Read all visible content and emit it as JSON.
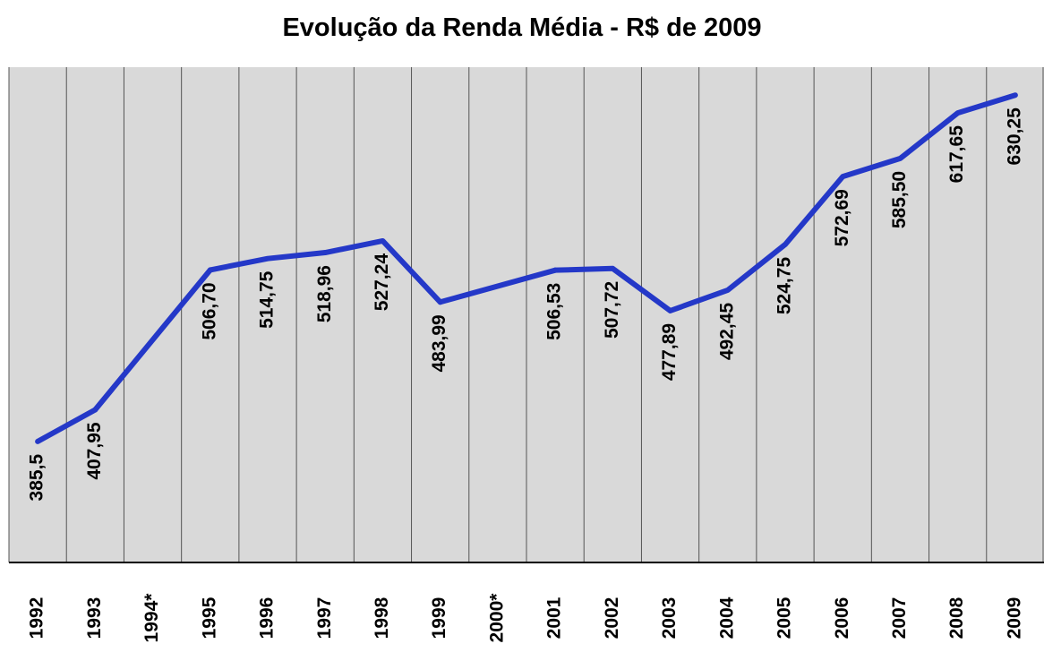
{
  "chart_data": {
    "type": "line",
    "title": "Evolução da Renda Média - R$ de 2009",
    "categories": [
      "1992",
      "1993",
      "1994*",
      "1995",
      "1996",
      "1997",
      "1998",
      "1999",
      "2000*",
      "2001",
      "2002",
      "2003",
      "2004",
      "2005",
      "2006",
      "2007",
      "2008",
      "2009"
    ],
    "series": [
      {
        "name": "Renda Média",
        "color": "#2438c8",
        "values": [
          385.5,
          407.95,
          null,
          506.7,
          514.75,
          518.96,
          527.24,
          483.99,
          null,
          506.53,
          507.72,
          477.89,
          492.45,
          524.75,
          572.69,
          585.5,
          617.65,
          630.25
        ],
        "value_labels": [
          "385,5",
          "407,95",
          null,
          "506,70",
          "514,75",
          "518,96",
          "527,24",
          "483,99",
          null,
          "506,53",
          "507,72",
          "477,89",
          "492,45",
          "524,75",
          "572,69",
          "585,50",
          "617,65",
          "630,25"
        ]
      }
    ],
    "ylim": [
      300,
      650
    ],
    "connect_gaps": true,
    "grid": true
  }
}
